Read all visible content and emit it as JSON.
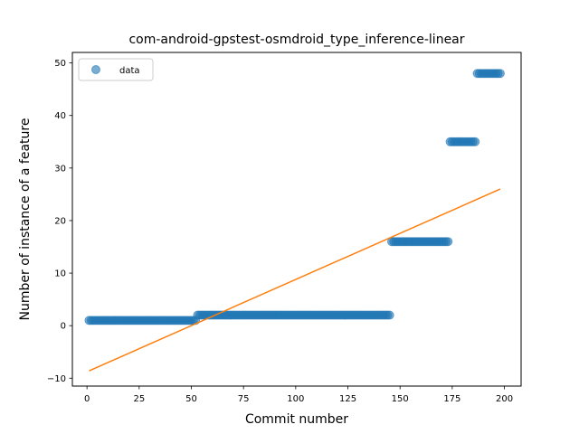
{
  "chart_data": {
    "type": "scatter",
    "title": "com-android-gpstest-osmdroid_type_inference-linear",
    "xlabel": "Commit number",
    "ylabel": "Number of instance of a feature",
    "xlim": [
      -7,
      208
    ],
    "ylim": [
      -11.5,
      52
    ],
    "xticks": [
      0,
      25,
      50,
      75,
      100,
      125,
      150,
      175,
      200
    ],
    "yticks": [
      -10,
      0,
      10,
      20,
      30,
      40,
      50
    ],
    "grid": false,
    "legend": {
      "placement": "top-left",
      "entries": [
        "data"
      ]
    },
    "colors": {
      "data": "#1f77b4",
      "fit": "#ff7f0e"
    },
    "series": [
      {
        "name": "data",
        "kind": "scatter",
        "segments": [
          {
            "x_start": 1,
            "x_end": 52,
            "y": 1
          },
          {
            "x_start": 53,
            "x_end": 145,
            "y": 2
          },
          {
            "x_start": 146,
            "x_end": 173,
            "y": 16
          },
          {
            "x_start": 174,
            "x_end": 186,
            "y": 35
          },
          {
            "x_start": 187,
            "x_end": 198,
            "y": 48
          }
        ]
      },
      {
        "kind": "line",
        "x": [
          1,
          198
        ],
        "y": [
          -8.6,
          26
        ]
      }
    ]
  }
}
